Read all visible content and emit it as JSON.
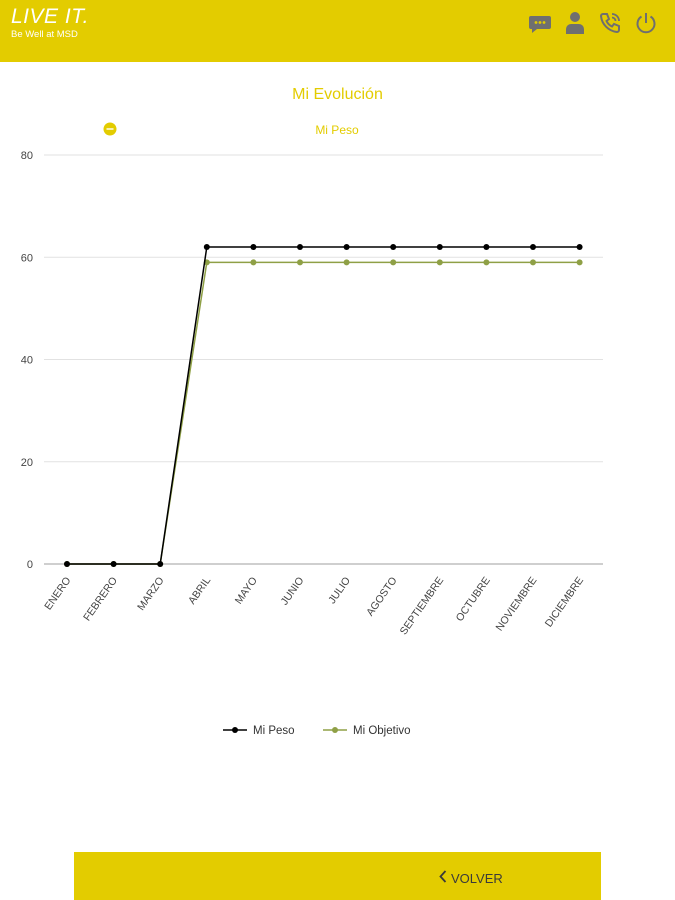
{
  "header": {
    "brand_title": "LIVE IT.",
    "brand_subtitle": "Be Well at MSD",
    "icons": [
      "chat-icon",
      "user-icon",
      "phone-icon",
      "power-icon"
    ]
  },
  "page": {
    "title": "Mi Evolución"
  },
  "chart_data": {
    "type": "line",
    "title": "Mi Peso",
    "categories": [
      "ENERO",
      "FEBRERO",
      "MARZO",
      "ABRIL",
      "MAYO",
      "JUNIO",
      "JULIO",
      "AGOSTO",
      "SEPTIEMBRE",
      "OCTUBRE",
      "NOVIEMBRE",
      "DICIEMBRE"
    ],
    "yticks": [
      "0",
      "20",
      "40",
      "60",
      "80"
    ],
    "ylim": [
      0,
      80
    ],
    "grid": true,
    "legend_position": "bottom",
    "series": [
      {
        "name": "Mi Peso",
        "color": "#000000",
        "values": [
          0,
          0,
          0,
          62,
          62,
          62,
          62,
          62,
          62,
          62,
          62,
          62
        ]
      },
      {
        "name": "Mi Objetivo",
        "color": "#8fa046",
        "values": [
          0,
          0,
          0,
          59,
          59,
          59,
          59,
          59,
          59,
          59,
          59,
          59
        ]
      }
    ]
  },
  "footer": {
    "volver_label": "VOLVER"
  }
}
